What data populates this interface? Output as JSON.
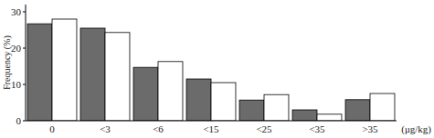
{
  "chart_data": {
    "type": "bar",
    "ylabel": "Frequency (%)",
    "xlabel": "(μg/kg)",
    "categories": [
      "0",
      "<3",
      "<6",
      "<15",
      "<25",
      "<35",
      ">35"
    ],
    "series": [
      {
        "color": "#6b6b6b",
        "values": [
          26.7,
          25.5,
          14.7,
          11.5,
          5.7,
          3.0,
          5.8
        ]
      },
      {
        "color": "#ffffff",
        "values": [
          28.0,
          24.3,
          16.3,
          10.5,
          7.2,
          1.8,
          7.5
        ]
      }
    ],
    "ylim": [
      0,
      32
    ],
    "yticks": [
      0,
      10,
      20,
      30
    ],
    "grid": false
  }
}
